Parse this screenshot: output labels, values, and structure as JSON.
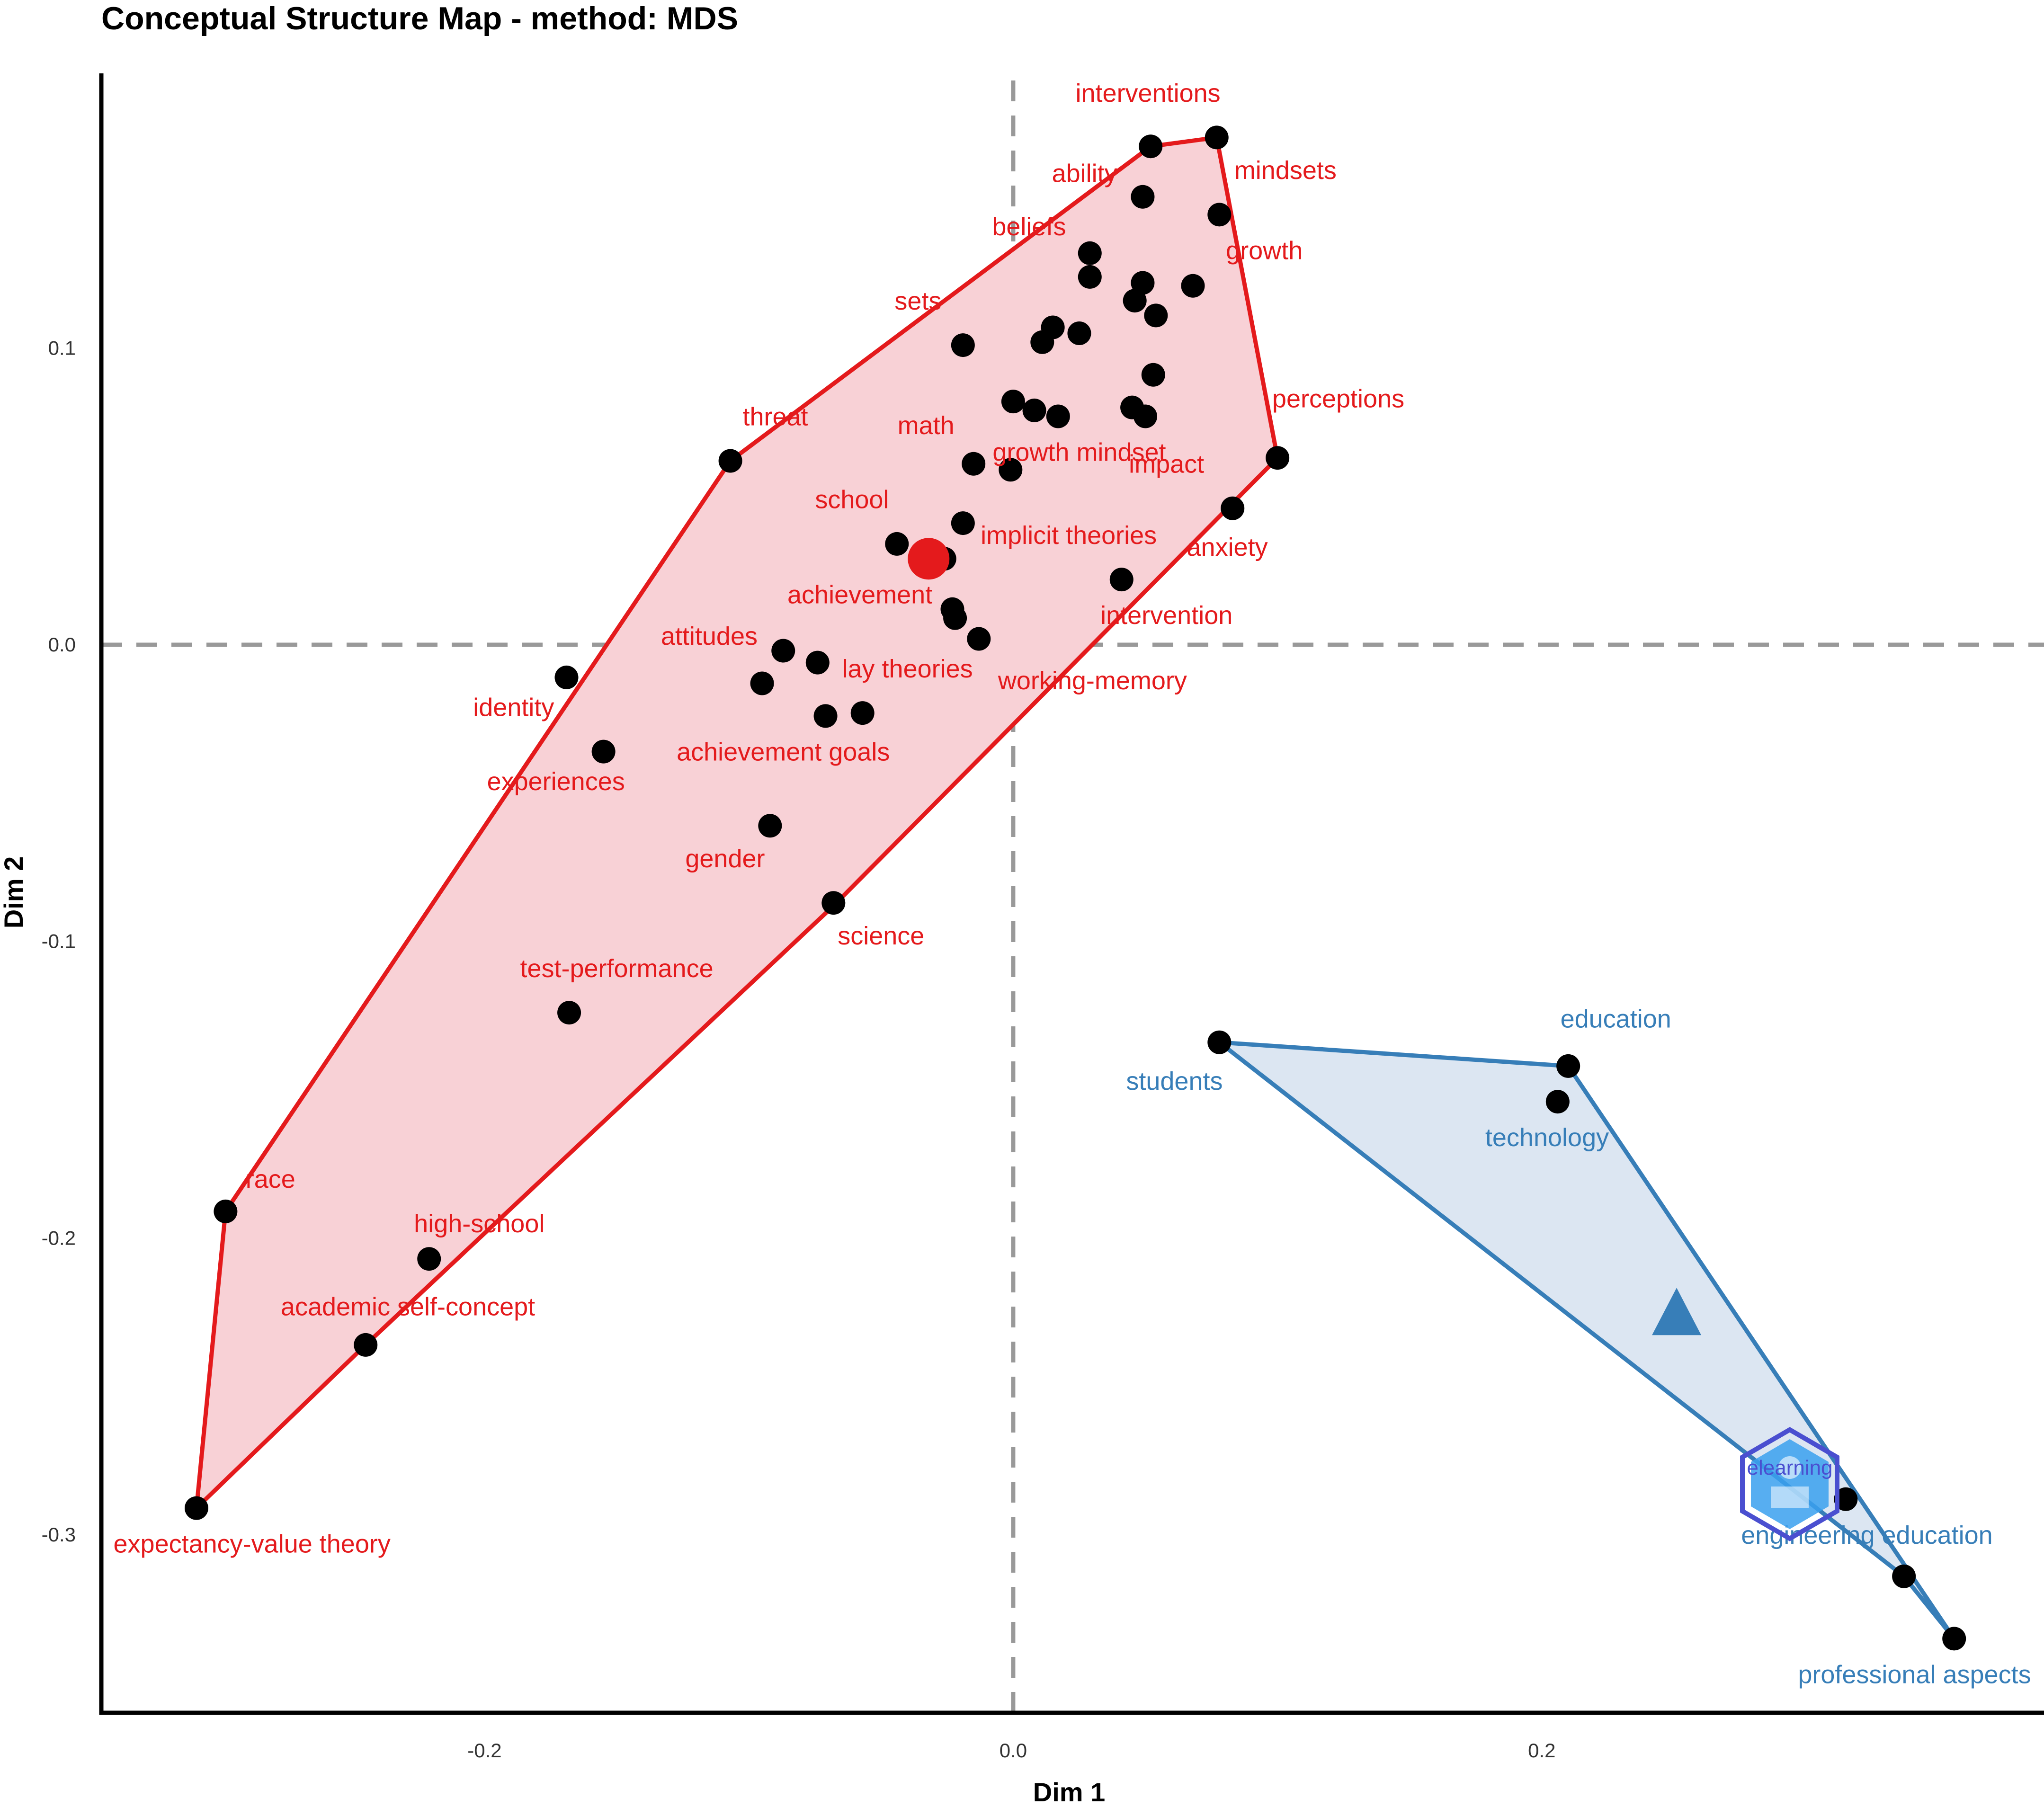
{
  "chart_data": {
    "type": "scatter",
    "title": "Conceptual Structure Map - method: MDS",
    "xlabel": "Dim 1",
    "ylabel": "Dim 2",
    "xlim": [
      -0.345,
      0.39
    ],
    "ylim": [
      -0.36,
      0.195
    ],
    "xticks": [
      {
        "v": -0.2,
        "label": "-0.2"
      },
      {
        "v": 0.0,
        "label": "0.0"
      },
      {
        "v": 0.2,
        "label": "0.2"
      }
    ],
    "yticks": [
      {
        "v": -0.3,
        "label": "-0.3"
      },
      {
        "v": -0.2,
        "label": "-0.2"
      },
      {
        "v": -0.1,
        "label": "-0.1"
      },
      {
        "v": 0.0,
        "label": "0.0"
      },
      {
        "v": 0.1,
        "label": "0.1"
      }
    ],
    "reference_lines": {
      "x": 0,
      "y": 0
    },
    "clusters": [
      {
        "color": "#e41a1c",
        "fill": "#f8d1d6",
        "centroid": {
          "x": -0.032,
          "y": 0.029,
          "shape": "circle"
        },
        "hull": [
          [
            -0.309,
            -0.291
          ],
          [
            -0.298,
            -0.191
          ],
          [
            -0.107,
            0.062
          ],
          [
            0.052,
            0.168
          ],
          [
            0.077,
            0.171
          ],
          [
            0.1,
            0.063
          ],
          [
            -0.068,
            -0.088
          ],
          [
            -0.245,
            -0.236
          ]
        ],
        "points": [
          {
            "x": 0.052,
            "y": 0.168,
            "label": "interventions",
            "lx": 0.051,
            "ly": 0.183
          },
          {
            "x": 0.077,
            "y": 0.171,
            "label": ""
          },
          {
            "x": 0.049,
            "y": 0.151,
            "label": "ability",
            "lx": 0.027,
            "ly": 0.156
          },
          {
            "x": 0.078,
            "y": 0.145,
            "label": "mindsets",
            "lx": 0.103,
            "ly": 0.157
          },
          {
            "x": 0.029,
            "y": 0.132,
            "label": "beliefs",
            "lx": 0.006,
            "ly": 0.138
          },
          {
            "x": 0.029,
            "y": 0.124,
            "label": ""
          },
          {
            "x": 0.068,
            "y": 0.121,
            "label": "growth",
            "lx": 0.095,
            "ly": 0.13
          },
          {
            "x": 0.049,
            "y": 0.122,
            "label": ""
          },
          {
            "x": 0.046,
            "y": 0.116,
            "label": ""
          },
          {
            "x": 0.054,
            "y": 0.111,
            "label": ""
          },
          {
            "x": 0.015,
            "y": 0.107,
            "label": ""
          },
          {
            "x": 0.025,
            "y": 0.105,
            "label": ""
          },
          {
            "x": 0.011,
            "y": 0.102,
            "label": ""
          },
          {
            "x": -0.019,
            "y": 0.101,
            "label": "sets",
            "lx": -0.036,
            "ly": 0.113
          },
          {
            "x": 0.053,
            "y": 0.091,
            "label": ""
          },
          {
            "x": 0.0,
            "y": 0.082,
            "label": ""
          },
          {
            "x": 0.008,
            "y": 0.079,
            "label": ""
          },
          {
            "x": 0.017,
            "y": 0.077,
            "label": ""
          },
          {
            "x": 0.045,
            "y": 0.08,
            "label": ""
          },
          {
            "x": 0.05,
            "y": 0.077,
            "label": ""
          },
          {
            "x": 0.1,
            "y": 0.063,
            "label": "perceptions",
            "lx": 0.123,
            "ly": 0.08
          },
          {
            "x": -0.107,
            "y": 0.062,
            "label": "threat",
            "lx": -0.09,
            "ly": 0.074
          },
          {
            "x": -0.015,
            "y": 0.061,
            "label": "math",
            "lx": -0.033,
            "ly": 0.071
          },
          {
            "x": -0.001,
            "y": 0.059,
            "label": "growth mindset",
            "lx": 0.025,
            "ly": 0.062
          },
          {
            "x": 0.083,
            "y": 0.046,
            "label": "impact",
            "lx": 0.058,
            "ly": 0.058
          },
          {
            "x": -0.019,
            "y": 0.041,
            "label": "school",
            "lx": -0.061,
            "ly": 0.046
          },
          {
            "x": -0.044,
            "y": 0.034,
            "label": "implicit theories",
            "lx": 0.021,
            "ly": 0.034
          },
          {
            "x": -0.026,
            "y": 0.029,
            "label": ""
          },
          {
            "x": 0.041,
            "y": 0.022,
            "label": "anxiety",
            "lx": 0.081,
            "ly": 0.03
          },
          {
            "x": -0.023,
            "y": 0.012,
            "label": "achievement",
            "lx": -0.058,
            "ly": 0.014
          },
          {
            "x": -0.022,
            "y": 0.009,
            "label": "intervention",
            "lx": 0.058,
            "ly": 0.007
          },
          {
            "x": -0.013,
            "y": 0.002,
            "label": ""
          },
          {
            "x": -0.087,
            "y": -0.002,
            "label": "attitudes",
            "lx": -0.115,
            "ly": 0.0
          },
          {
            "x": -0.074,
            "y": -0.006,
            "label": "lay theories",
            "lx": -0.04,
            "ly": -0.011
          },
          {
            "x": -0.095,
            "y": -0.013,
            "label": ""
          },
          {
            "x": -0.169,
            "y": -0.011,
            "label": "identity",
            "lx": -0.189,
            "ly": -0.024
          },
          {
            "x": -0.071,
            "y": -0.024,
            "label": "working-memory",
            "lx": 0.03,
            "ly": -0.015
          },
          {
            "x": -0.057,
            "y": -0.023,
            "label": ""
          },
          {
            "x": -0.155,
            "y": -0.036,
            "label": "experiences",
            "lx": -0.173,
            "ly": -0.049
          },
          {
            "x": 0.0,
            "y": 0.0,
            "label": "achievement goals",
            "lx": -0.087,
            "ly": -0.039,
            "hidden": true
          },
          {
            "x": -0.092,
            "y": -0.061,
            "label": "gender",
            "lx": -0.109,
            "ly": -0.075
          },
          {
            "x": -0.068,
            "y": -0.087,
            "label": "science",
            "lx": -0.05,
            "ly": -0.101
          },
          {
            "x": -0.168,
            "y": -0.124,
            "label": "test-performance",
            "lx": -0.15,
            "ly": -0.112
          },
          {
            "x": -0.298,
            "y": -0.191,
            "label": "race",
            "lx": -0.281,
            "ly": -0.183
          },
          {
            "x": -0.221,
            "y": -0.207,
            "label": "high-school",
            "lx": -0.202,
            "ly": -0.198
          },
          {
            "x": -0.245,
            "y": -0.236,
            "label": "academic self-concept",
            "lx": -0.229,
            "ly": -0.226
          },
          {
            "x": -0.309,
            "y": -0.291,
            "label": "expectancy-value theory",
            "lx": -0.288,
            "ly": -0.306
          }
        ]
      },
      {
        "color": "#377eb8",
        "fill": "#dce6f2",
        "centroid": {
          "x": 0.251,
          "y": -0.226,
          "shape": "triangle"
        },
        "hull": [
          [
            0.078,
            -0.134
          ],
          [
            0.21,
            -0.142
          ],
          [
            0.356,
            -0.335
          ],
          [
            0.337,
            -0.314
          ]
        ],
        "points": [
          {
            "x": 0.078,
            "y": -0.134,
            "label": "students",
            "lx": 0.061,
            "ly": -0.15
          },
          {
            "x": 0.21,
            "y": -0.142,
            "label": "education",
            "lx": 0.228,
            "ly": -0.129
          },
          {
            "x": 0.206,
            "y": -0.154,
            "label": "technology",
            "lx": 0.202,
            "ly": -0.169
          },
          {
            "x": 0.315,
            "y": -0.288,
            "label": "engineering education",
            "lx": 0.323,
            "ly": -0.303
          },
          {
            "x": 0.337,
            "y": -0.314,
            "label": ""
          },
          {
            "x": 0.356,
            "y": -0.335,
            "label": "professional aspects",
            "lx": 0.341,
            "ly": -0.35
          }
        ]
      }
    ]
  },
  "watermark": {
    "text": "elearning",
    "icon": "hexagon-watermark-icon"
  }
}
